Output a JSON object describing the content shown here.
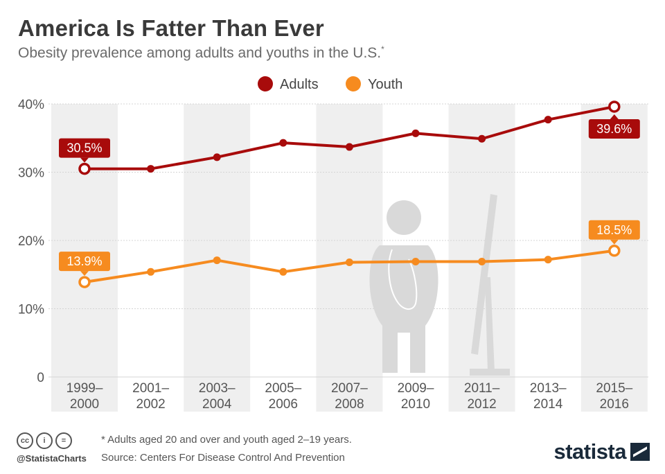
{
  "header": {
    "title": "America Is Fatter Than Ever",
    "subtitle": "Obesity prevalence among adults and youths in the U.S.",
    "subtitle_mark": "*"
  },
  "chart_data": {
    "type": "line",
    "x": [
      "1999–\n2000",
      "2001–\n2002",
      "2003–\n2004",
      "2005–\n2006",
      "2007–\n2008",
      "2009–\n2010",
      "2011–\n2012",
      "2013–\n2014",
      "2015–\n2016"
    ],
    "yticks": [
      "40%",
      "30%",
      "20%",
      "10%",
      "0"
    ],
    "ylim": [
      0,
      40
    ],
    "grid": true,
    "legend_position": "top-center",
    "series": [
      {
        "name": "Adults",
        "color": "#a80b0b",
        "values": [
          30.5,
          30.5,
          32.2,
          34.3,
          33.7,
          35.7,
          34.9,
          37.7,
          39.6
        ]
      },
      {
        "name": "Youth",
        "color": "#f68b1f",
        "values": [
          13.9,
          15.4,
          17.1,
          15.4,
          16.8,
          16.9,
          16.9,
          17.2,
          18.5
        ]
      }
    ],
    "annotations": [
      {
        "series": 0,
        "index": 0,
        "text": "30.5%"
      },
      {
        "series": 0,
        "index": 8,
        "text": "39.6%"
      },
      {
        "series": 1,
        "index": 0,
        "text": "13.9%"
      },
      {
        "series": 1,
        "index": 8,
        "text": "18.5%"
      }
    ]
  },
  "footer": {
    "icons": [
      "cc-icon",
      "person-icon",
      "equals-icon"
    ],
    "icon_glyphs": [
      "cc",
      "i",
      "="
    ],
    "handle": "@StatistaCharts",
    "note": "* Adults aged 20 and over and youth aged 2–19 years.",
    "source": "Source: Centers For Disease Control And Prevention",
    "logo": "statista"
  }
}
